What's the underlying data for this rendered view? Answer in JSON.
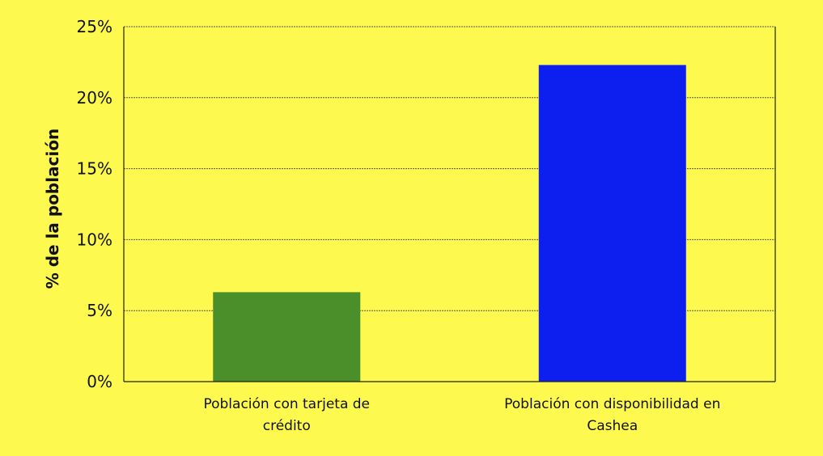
{
  "chart_data": {
    "type": "bar",
    "categories": [
      [
        "Población con tarjeta de",
        "crédito"
      ],
      [
        "Población con disponibilidad en",
        "Cashea"
      ]
    ],
    "values": [
      6.3,
      22.3
    ],
    "bar_colors": [
      "#4a8f29",
      "#0c1fef"
    ],
    "ylabel": "% de la población",
    "ylim": [
      0,
      25
    ],
    "yticks": [
      0,
      5,
      10,
      15,
      20,
      25
    ],
    "ytick_labels": [
      "0%",
      "5%",
      "10%",
      "15%",
      "20%",
      "25%"
    ],
    "grid": true,
    "background": "#fdf94f"
  }
}
